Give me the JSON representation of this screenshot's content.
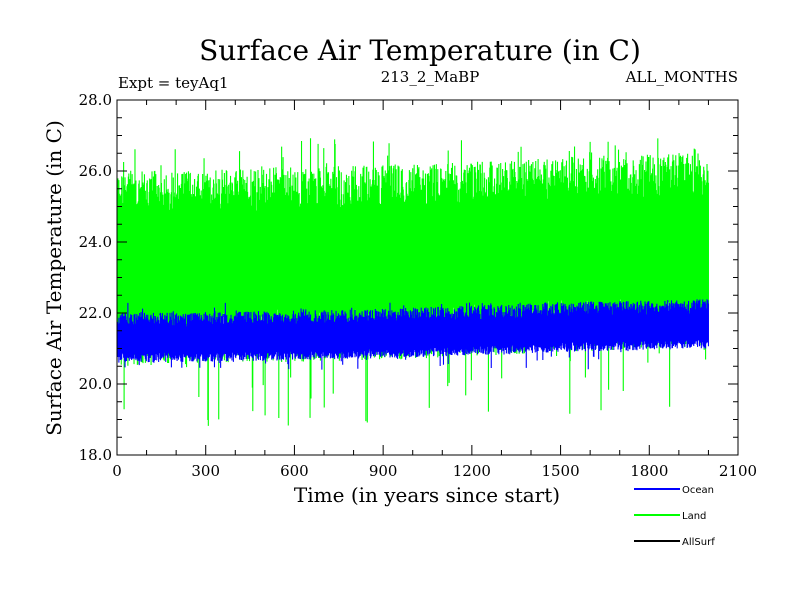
{
  "chart_data": {
    "type": "line",
    "title": "Surface Air Temperature (in C)",
    "subtitle_left": "Expt = teyAq1",
    "subtitle_center": "213_2_MaBP",
    "subtitle_right": "ALL_MONTHS",
    "xlabel": "Time (in years since start)",
    "ylabel": "Surface Air Temperature (in C)",
    "xlim": [
      0,
      2100
    ],
    "ylim": [
      18.0,
      28.0
    ],
    "x_ticks": [
      0,
      300,
      600,
      900,
      1200,
      1500,
      1800,
      2100
    ],
    "y_ticks": [
      "18.0",
      "20.0",
      "22.0",
      "24.0",
      "26.0",
      "28.0"
    ],
    "x_minor_step": 100,
    "y_minor_step": 0.5,
    "grid": false,
    "legend_position": "bottom-right",
    "series": [
      {
        "name": "Land",
        "color": "#00ff00",
        "x_range": [
          0,
          2000
        ],
        "mean_trend": [
          [
            0,
            23.3
          ],
          [
            500,
            23.4
          ],
          [
            1000,
            23.5
          ],
          [
            1500,
            23.7
          ],
          [
            2000,
            23.8
          ]
        ],
        "typical_min": 20.5,
        "typical_max": 26.0,
        "extreme_min": 18.8,
        "extreme_max": 27.0
      },
      {
        "name": "Ocean",
        "color": "#0000ff",
        "x_range": [
          0,
          2000
        ],
        "mean_trend": [
          [
            0,
            21.1
          ],
          [
            500,
            21.15
          ],
          [
            1000,
            21.25
          ],
          [
            1500,
            21.4
          ],
          [
            2000,
            21.5
          ]
        ],
        "typical_min": 20.6,
        "typical_max": 22.0,
        "extreme_min": 20.4,
        "extreme_max": 22.3
      },
      {
        "name": "AllSurf",
        "color": "#000000",
        "x_range": [],
        "mean_trend": []
      }
    ]
  }
}
